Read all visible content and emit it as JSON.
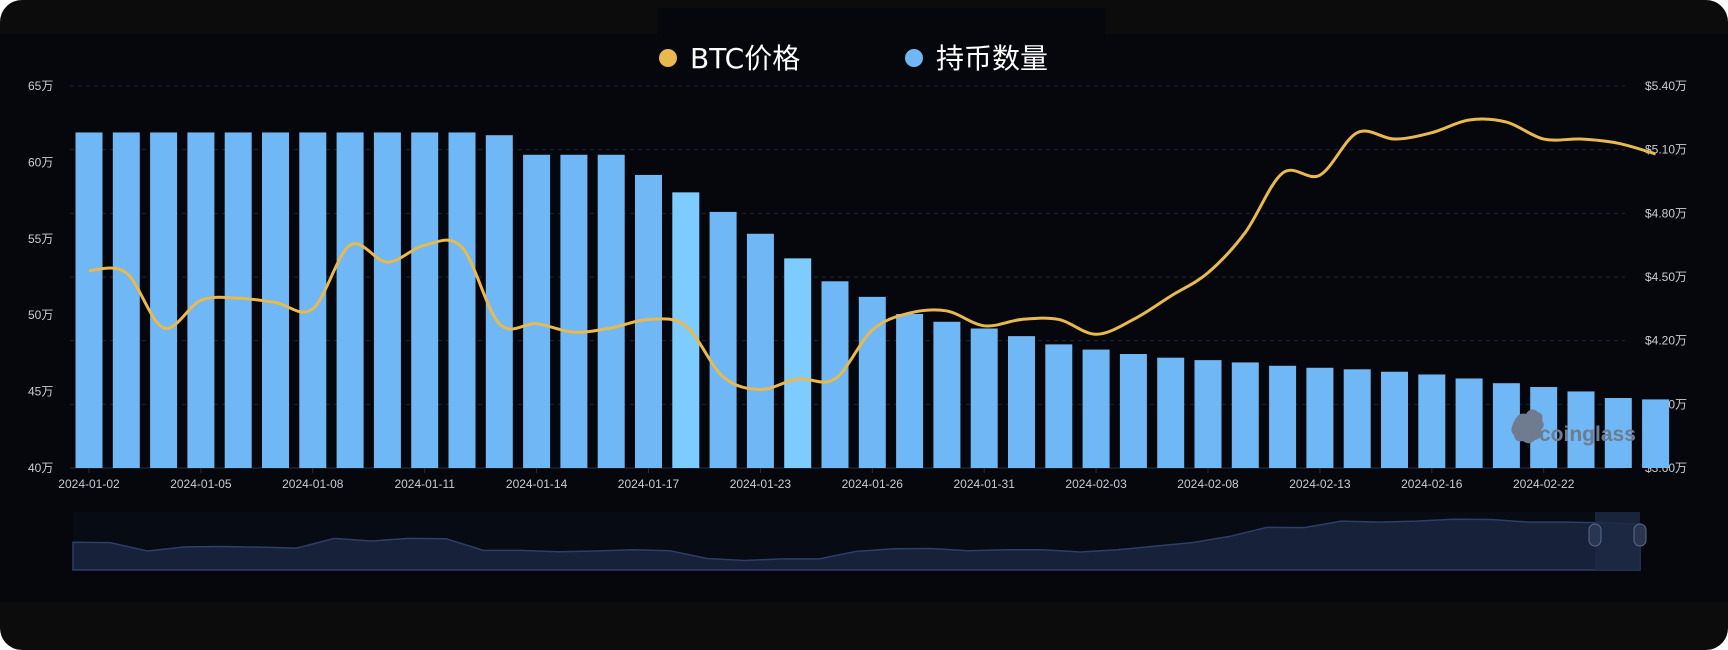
{
  "colors": {
    "bar": "#6fb8f5",
    "bar_highlight": "#7ecbff",
    "line": "#e9b94f",
    "grid": "#1e2430",
    "text": "#c9ccd3",
    "panel_bg": "#05070c",
    "frame_bg": "#0c0c0c",
    "navigator_fill": "#17223a",
    "navigator_line": "#2c3f66",
    "handle": "#2a3550"
  },
  "watermark": "coinglass",
  "chart_data": {
    "type": "bar+line",
    "legend_position": "top-center",
    "grid": true,
    "legend": [
      {
        "label": "BTC价格",
        "color": "#e9b94f",
        "icon": "circle-marker-icon"
      },
      {
        "label": "持币数量",
        "color": "#6fb8f5",
        "icon": "circle-marker-icon"
      }
    ],
    "x_tick_labels": [
      "2024-01-02",
      "2024-01-05",
      "2024-01-08",
      "2024-01-11",
      "2024-01-14",
      "2024-01-17",
      "2024-01-23",
      "2024-01-26",
      "2024-01-31",
      "2024-02-03",
      "2024-02-08",
      "2024-02-13",
      "2024-02-16",
      "2024-02-22"
    ],
    "left_axis": {
      "ylim": [
        400000,
        650000
      ],
      "tick_values": [
        400000,
        450000,
        500000,
        550000,
        600000,
        650000
      ],
      "tick_labels": [
        "40万",
        "45万",
        "50万",
        "55万",
        "60万",
        "65万"
      ]
    },
    "right_axis": {
      "ylim": [
        36000,
        54000
      ],
      "tick_values": [
        36000,
        39000,
        42000,
        45000,
        48000,
        51000,
        54000
      ],
      "tick_labels": [
        "$3.60万",
        "$3.90万",
        "$4.20万",
        "$4.50万",
        "$4.80万",
        "$5.10万",
        "$5.40万"
      ]
    },
    "series": [
      {
        "name": "持币数量",
        "type": "bar",
        "axis": "left",
        "values": [
          619600,
          619600,
          619600,
          619600,
          619600,
          619600,
          619600,
          619600,
          619600,
          619600,
          619600,
          617800,
          605000,
          605000,
          605000,
          591800,
          580400,
          567600,
          553300,
          537200,
          522200,
          512000,
          500800,
          495700,
          491300,
          486300,
          480900,
          477500,
          474600,
          472200,
          470600,
          469100,
          466900,
          465600,
          464600,
          463000,
          461200,
          458600,
          455500,
          453000,
          450100,
          445800,
          444900
        ],
        "highlight_indices": [
          16,
          19
        ]
      },
      {
        "name": "BTC价格",
        "type": "line",
        "axis": "right",
        "values": [
          45300,
          45200,
          42600,
          43900,
          44000,
          43800,
          43500,
          46500,
          45700,
          46500,
          46400,
          42800,
          42800,
          42400,
          42600,
          43000,
          42700,
          40300,
          39700,
          40200,
          40200,
          42500,
          43300,
          43400,
          42700,
          43000,
          43000,
          42300,
          43000,
          44100,
          45200,
          47100,
          49900,
          49800,
          51800,
          51500,
          51800,
          52400,
          52300,
          51500,
          51500,
          51300,
          50800
        ]
      }
    ]
  }
}
